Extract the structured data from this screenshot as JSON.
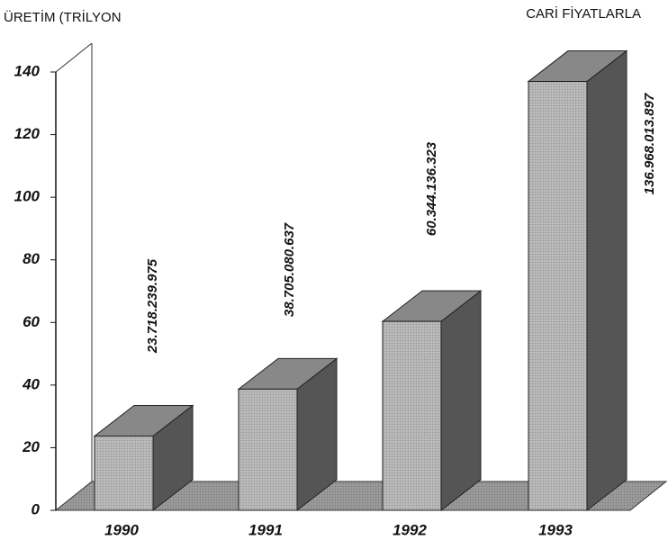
{
  "chart_data": {
    "type": "bar3d",
    "title": "ÜRETİM (TRİLYON",
    "subtitle": "CARİ FİYATLARLA",
    "categories": [
      "1990",
      "1991",
      "1992",
      "1993"
    ],
    "values": [
      23.718239975,
      38.705080637,
      60.344136323,
      136.968013897
    ],
    "value_labels": [
      "23.718.239.975",
      "38.705.080.637",
      "60.344.136.323",
      "136.968.013.897"
    ],
    "color": "#b8b8b8",
    "ylim": [
      0,
      140
    ],
    "yticks": [
      0,
      20,
      40,
      60,
      80,
      100,
      120,
      140
    ]
  }
}
